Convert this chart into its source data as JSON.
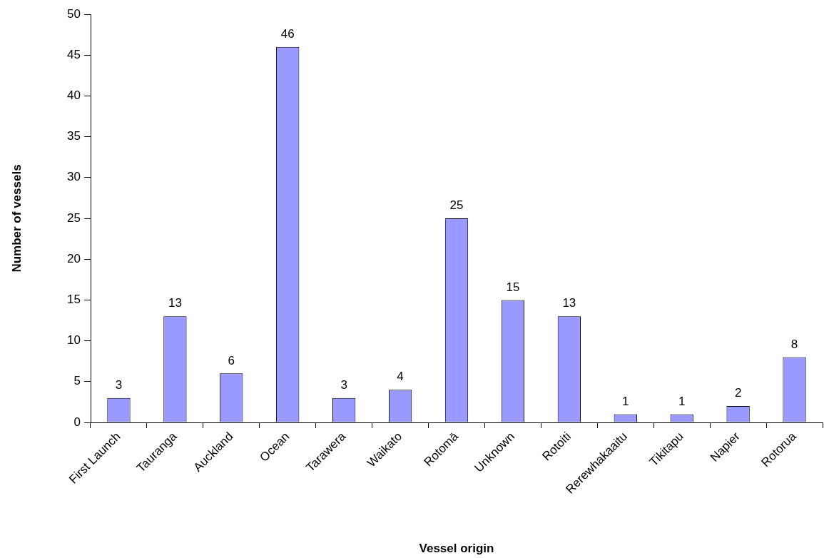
{
  "chart_data": {
    "type": "bar",
    "xlabel": "Vessel origin",
    "ylabel": "Number of vessels",
    "categories": [
      "First Launch",
      "Tauranga",
      "Auckland",
      "Ocean",
      "Tarawera",
      "Waikato",
      "Rotomā",
      "Unknown",
      "Rotoiti",
      "Rerewhakaaitu",
      "Tikitapu",
      "Napier",
      "Rotorua"
    ],
    "values": [
      3,
      13,
      6,
      46,
      3,
      4,
      25,
      15,
      13,
      1,
      1,
      2,
      8
    ],
    "color": "#9999ff",
    "ylim": [
      0,
      50
    ],
    "yticks": [
      0,
      5,
      10,
      15,
      20,
      25,
      30,
      35,
      40,
      45,
      50
    ],
    "data_labels": true
  }
}
